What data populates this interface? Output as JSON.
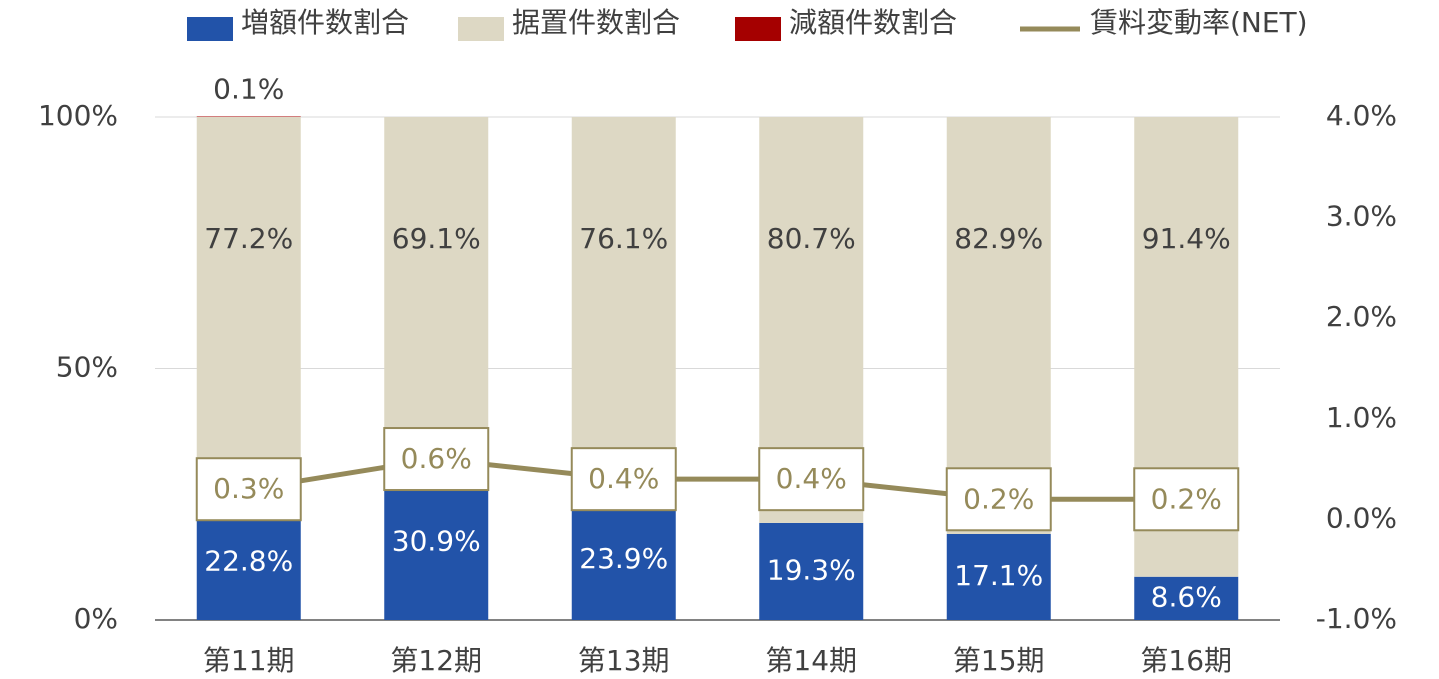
{
  "chart_data": {
    "type": "bar",
    "categories": [
      "第11期",
      "第12期",
      "第13期",
      "第14期",
      "第15期",
      "第16期"
    ],
    "series": [
      {
        "name": "増額件数割合",
        "color": "#2253a9",
        "values": [
          22.8,
          30.9,
          23.9,
          19.3,
          17.1,
          8.6
        ],
        "value_labels": [
          "22.8%",
          "30.9%",
          "23.9%",
          "19.3%",
          "17.1%",
          "8.6%"
        ]
      },
      {
        "name": "据置件数割合",
        "color": "#ddd8c4",
        "values": [
          77.2,
          69.1,
          76.1,
          80.7,
          82.9,
          91.4
        ],
        "value_labels": [
          "77.2%",
          "69.1%",
          "76.1%",
          "80.7%",
          "82.9%",
          "91.4%"
        ]
      },
      {
        "name": "減額件数割合",
        "color": "#a50000",
        "values": [
          0.1,
          0,
          0,
          0,
          0,
          0
        ],
        "value_labels": [
          "0.1%",
          null,
          null,
          null,
          null,
          null
        ]
      },
      {
        "name": "賃料変動率(NET)",
        "type": "line",
        "axis": "y2",
        "color": "#958a5a",
        "values": [
          0.3,
          0.6,
          0.4,
          0.4,
          0.2,
          0.2
        ],
        "value_labels": [
          "0.3%",
          "0.6%",
          "0.4%",
          "0.4%",
          "0.2%",
          "0.2%"
        ]
      }
    ],
    "stacked": true,
    "ylim": [
      0,
      100
    ],
    "yticks": [
      {
        "value": 0,
        "label": "0%"
      },
      {
        "value": 50,
        "label": "50%"
      },
      {
        "value": 100,
        "label": "100%"
      }
    ],
    "y2lim": [
      -1.0,
      4.0
    ],
    "y2ticks": [
      {
        "value": -1.0,
        "label": "-1.0%"
      },
      {
        "value": 0.0,
        "label": "0.0%"
      },
      {
        "value": 1.0,
        "label": "1.0%"
      },
      {
        "value": 2.0,
        "label": "2.0%"
      },
      {
        "value": 3.0,
        "label": "3.0%"
      },
      {
        "value": 4.0,
        "label": "4.0%"
      }
    ],
    "grid": true,
    "legend": "top"
  }
}
